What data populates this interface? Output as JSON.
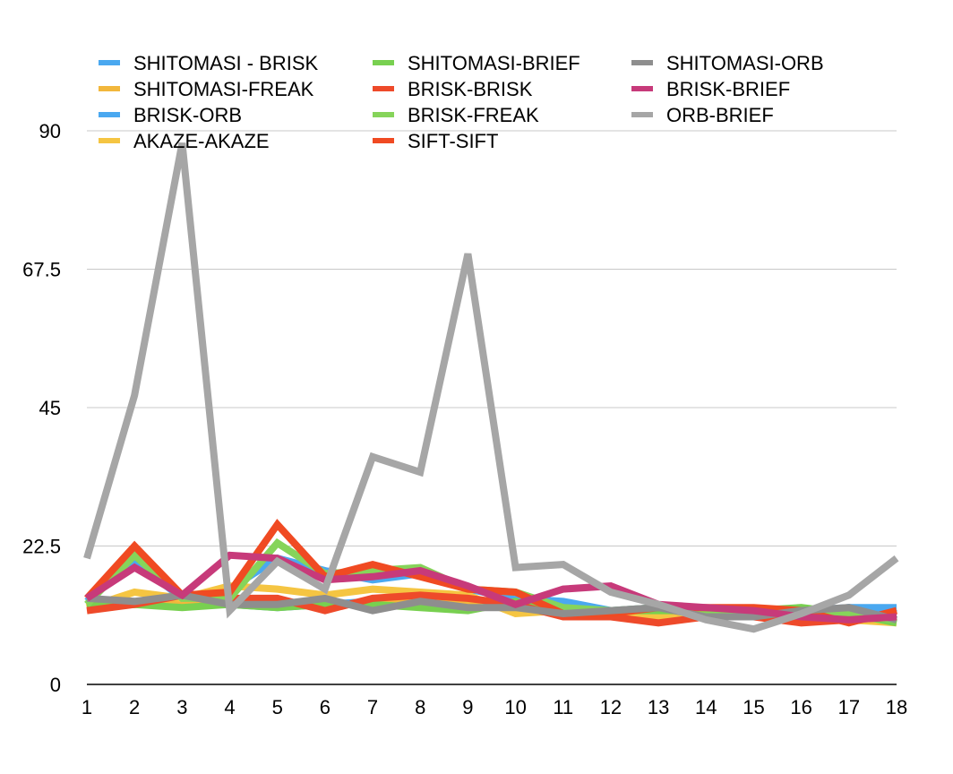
{
  "chart_data": {
    "type": "line",
    "title": "",
    "xlabel": "",
    "ylabel": "",
    "x": [
      1,
      2,
      3,
      4,
      5,
      6,
      7,
      8,
      9,
      10,
      11,
      12,
      13,
      14,
      15,
      16,
      17,
      18
    ],
    "x_tick_labels": [
      "1",
      "2",
      "3",
      "4",
      "5",
      "6",
      "7",
      "8",
      "9",
      "10",
      "11",
      "12",
      "13",
      "14",
      "15",
      "16",
      "17",
      "18"
    ],
    "ylim": [
      0,
      90
    ],
    "y_ticks": [
      0,
      22.5,
      45,
      67.5,
      90
    ],
    "y_tick_labels": [
      "0",
      "22.5",
      "45",
      "67.5",
      "90"
    ],
    "grid": "horizontal",
    "legend_position": "top",
    "series": [
      {
        "name": "SHITOMASI - BRISK",
        "color": "#4aa8f0",
        "values": [
          13.5,
          13,
          14,
          13,
          12.5,
          13,
          13.5,
          13.5,
          12.5,
          13,
          12,
          12,
          12,
          12,
          11.5,
          12,
          12.5,
          12.5
        ]
      },
      {
        "name": "SHITOMASI-FREAK",
        "color": "#f2b73c",
        "values": [
          12.5,
          13,
          13.5,
          14,
          13.5,
          13,
          13,
          13.5,
          13,
          12.5,
          12,
          12,
          12,
          11.5,
          11,
          11,
          11,
          11
        ]
      },
      {
        "name": "BRISK-ORB",
        "color": "#4aa8f0",
        "values": [
          13.5,
          20,
          14,
          15.5,
          20.5,
          18.5,
          17,
          18,
          15.5,
          14,
          13.5,
          12,
          12.5,
          12,
          11.5,
          11.5,
          12.5,
          11.5
        ]
      },
      {
        "name": "AKAZE-AKAZE",
        "color": "#f5c542",
        "values": [
          12.5,
          15,
          14,
          16,
          15.5,
          14.5,
          15.5,
          15,
          14.5,
          11.5,
          12,
          11.5,
          11,
          11,
          11,
          11,
          10.5,
          10
        ]
      },
      {
        "name": "SHITOMASI-BRIEF",
        "color": "#78d050",
        "values": [
          13,
          13,
          12.5,
          13,
          12.5,
          13,
          13,
          12.5,
          12,
          13.5,
          11.5,
          12,
          12,
          12,
          12,
          12.5,
          11.5,
          10
        ]
      },
      {
        "name": "BRISK-BRISK",
        "color": "#ee4a2a",
        "values": [
          12,
          13,
          14.5,
          14,
          14,
          12,
          14,
          14.5,
          14,
          13,
          11,
          11,
          10,
          11,
          11,
          10,
          10.5,
          11
        ]
      },
      {
        "name": "BRISK-FREAK",
        "color": "#86d45a",
        "values": [
          13,
          21,
          14,
          14,
          23,
          18,
          18.5,
          19,
          15.5,
          15,
          12.5,
          12,
          12.5,
          12,
          12,
          12,
          11.5,
          10.5
        ]
      },
      {
        "name": "SIFT-SIFT",
        "color": "#f04a22",
        "values": [
          14,
          22.5,
          14.5,
          15,
          26,
          17.5,
          19.5,
          17.5,
          15.5,
          15,
          11.5,
          11.5,
          12.5,
          12.5,
          12.5,
          12,
          10,
          12
        ]
      },
      {
        "name": "SHITOMASI-ORB",
        "color": "#8e8e8e",
        "values": [
          14,
          13.5,
          14.5,
          13,
          13,
          14,
          12,
          13.5,
          12.5,
          12.5,
          11.5,
          12,
          12.5,
          11,
          11,
          12,
          12.5,
          10.5
        ]
      },
      {
        "name": "BRISK-BRIEF",
        "color": "#c73a7a",
        "values": [
          14,
          19,
          14.5,
          21,
          20.5,
          17,
          17.5,
          18.5,
          16,
          13,
          15.5,
          16,
          13,
          12.5,
          12,
          11,
          10.5,
          11
        ]
      },
      {
        "name": "ORB-BRIEF",
        "color": "#a6a6a6",
        "values": [
          20.5,
          47,
          88,
          12,
          20,
          15.5,
          37,
          34.5,
          70,
          19,
          19.5,
          15,
          13,
          10.5,
          9,
          11.5,
          14.5,
          20.5
        ]
      }
    ]
  }
}
